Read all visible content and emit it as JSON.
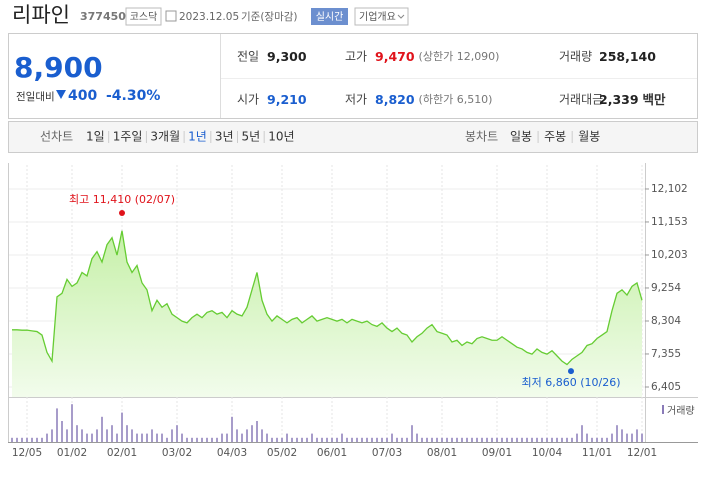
{
  "header": {
    "name": "리파인",
    "code": "377450",
    "market": "코스닥",
    "date": "2023.12.05",
    "basis": "기준(장마감)",
    "realtime": "실시간",
    "overview": "기업개요"
  },
  "quote": {
    "price": "8,900",
    "change_label": "전일대비",
    "change": "400",
    "rate": "-4.30%",
    "color": "#1a5ecf"
  },
  "stats": [
    {
      "label": "전일",
      "value": "9,300",
      "color": "#222222"
    },
    {
      "label": "고가",
      "value": "9,470",
      "note": "(상한가 12,090)",
      "color": "#e0131b"
    },
    {
      "label": "거래량",
      "value": "258,140",
      "color": "#222222"
    },
    {
      "label": "시가",
      "value": "9,210",
      "color": "#1a5ecf"
    },
    {
      "label": "저가",
      "value": "8,820",
      "note": "(하한가 6,510)",
      "color": "#1a5ecf"
    },
    {
      "label": "거래대금",
      "value": "2,339",
      "unit": "백만",
      "color": "#222222"
    }
  ],
  "toolbar": {
    "line_label": "선차트",
    "line_periods": [
      "1일",
      "1주일",
      "3개월",
      "1년",
      "3년",
      "5년",
      "10년"
    ],
    "selected": "1년",
    "candle_label": "봉차트",
    "candle_periods": [
      "일봉",
      "주봉",
      "월봉"
    ]
  },
  "chart_data": {
    "type": "line",
    "color": "#66cc33",
    "categories": [
      null,
      null,
      null,
      "12/05",
      null,
      null,
      null,
      null,
      null,
      null,
      null,
      null,
      "01/02",
      null,
      null,
      null,
      null,
      null,
      null,
      null,
      null,
      null,
      "02/01",
      null,
      null,
      null,
      null,
      null,
      null,
      null,
      null,
      null,
      null,
      "03/02",
      null,
      null,
      null,
      null,
      null,
      null,
      null,
      null,
      null,
      null,
      "04/03",
      null,
      null,
      null,
      null,
      null,
      null,
      null,
      null,
      null,
      "05/02",
      null,
      null,
      null,
      null,
      null,
      null,
      null,
      null,
      null,
      "06/01",
      null,
      null,
      null,
      null,
      null,
      null,
      null,
      null,
      null,
      null,
      "07/03",
      null,
      null,
      null,
      null,
      null,
      null,
      null,
      null,
      null,
      null,
      "08/01",
      null,
      null,
      null,
      null,
      null,
      null,
      null,
      null,
      null,
      null,
      "09/01",
      null,
      null,
      null,
      null,
      null,
      null,
      null,
      null,
      null,
      "10/04",
      null,
      null,
      null,
      null,
      null,
      null,
      null,
      null,
      null,
      "11/01",
      null,
      null,
      null,
      null,
      null,
      null,
      null,
      null,
      "12/01"
    ],
    "values": [
      8050,
      8050,
      8040,
      8040,
      8020,
      8000,
      7900,
      7400,
      7150,
      9000,
      9100,
      9500,
      9300,
      9400,
      9700,
      9600,
      10100,
      10300,
      10000,
      10500,
      10700,
      10200,
      10900,
      10000,
      9700,
      9900,
      9400,
      9200,
      8600,
      8900,
      8700,
      8800,
      8500,
      8400,
      8300,
      8250,
      8400,
      8500,
      8400,
      8550,
      8600,
      8500,
      8550,
      8400,
      8600,
      8500,
      8450,
      8700,
      9200,
      9700,
      8900,
      8500,
      8300,
      8450,
      8350,
      8250,
      8350,
      8400,
      8250,
      8350,
      8450,
      8300,
      8350,
      8400,
      8350,
      8300,
      8350,
      8250,
      8350,
      8300,
      8250,
      8300,
      8200,
      8150,
      8250,
      8100,
      8000,
      8100,
      7950,
      7900,
      7700,
      7850,
      7950,
      8100,
      8200,
      8000,
      7950,
      7900,
      7700,
      7750,
      7600,
      7700,
      7650,
      7800,
      7850,
      7800,
      7750,
      7750,
      7850,
      7750,
      7650,
      7550,
      7500,
      7400,
      7350,
      7500,
      7400,
      7350,
      7450,
      7300,
      7150,
      7050,
      7200,
      7300,
      7400,
      7600,
      7650,
      7800,
      7900,
      8000,
      8600,
      9100,
      9200,
      9050,
      9300,
      9400,
      8900
    ],
    "ylim": [
      6117,
      12792
    ],
    "yticks": [
      {
        "value": 12102,
        "label": "12,102"
      },
      {
        "value": 11153,
        "label": "11,153"
      },
      {
        "value": 10203,
        "label": "10,203"
      },
      {
        "value": 9254,
        "label": "9,254"
      },
      {
        "value": 8304,
        "label": "8,304"
      },
      {
        "value": 7355,
        "label": "7,355"
      },
      {
        "value": 6405,
        "label": "6,405"
      }
    ],
    "high": {
      "label": "최고 11,410 (02/07)",
      "value": 11410,
      "color": "#e0131b"
    },
    "low": {
      "label": "최저 6,860 (10/26)",
      "value": 6860,
      "color": "#1a5ecf"
    },
    "volume": {
      "name": "거래량",
      "color": "#8a7bb8",
      "ylim": [
        0,
        10
      ],
      "values": [
        1,
        1,
        1,
        1,
        1,
        1,
        1,
        2,
        3,
        8,
        5,
        3,
        9,
        4,
        3,
        2,
        2,
        3,
        6,
        3,
        4,
        2,
        7,
        4,
        3,
        2,
        2,
        2,
        3,
        2,
        2,
        1,
        3,
        4,
        2,
        1,
        1,
        1,
        1,
        1,
        1,
        1,
        2,
        2,
        6,
        3,
        2,
        3,
        4,
        5,
        3,
        2,
        1,
        1,
        1,
        2,
        1,
        1,
        1,
        1,
        2,
        1,
        1,
        1,
        1,
        1,
        2,
        1,
        1,
        1,
        1,
        1,
        1,
        1,
        1,
        1,
        2,
        1,
        1,
        1,
        4,
        2,
        1,
        1,
        1,
        1,
        1,
        1,
        1,
        1,
        1,
        1,
        1,
        1,
        1,
        1,
        1,
        1,
        1,
        1,
        1,
        1,
        1,
        1,
        1,
        1,
        1,
        1,
        1,
        1,
        1,
        1,
        1,
        2,
        4,
        2,
        1,
        1,
        1,
        1,
        2,
        4,
        3,
        2,
        2,
        3,
        2
      ]
    }
  }
}
